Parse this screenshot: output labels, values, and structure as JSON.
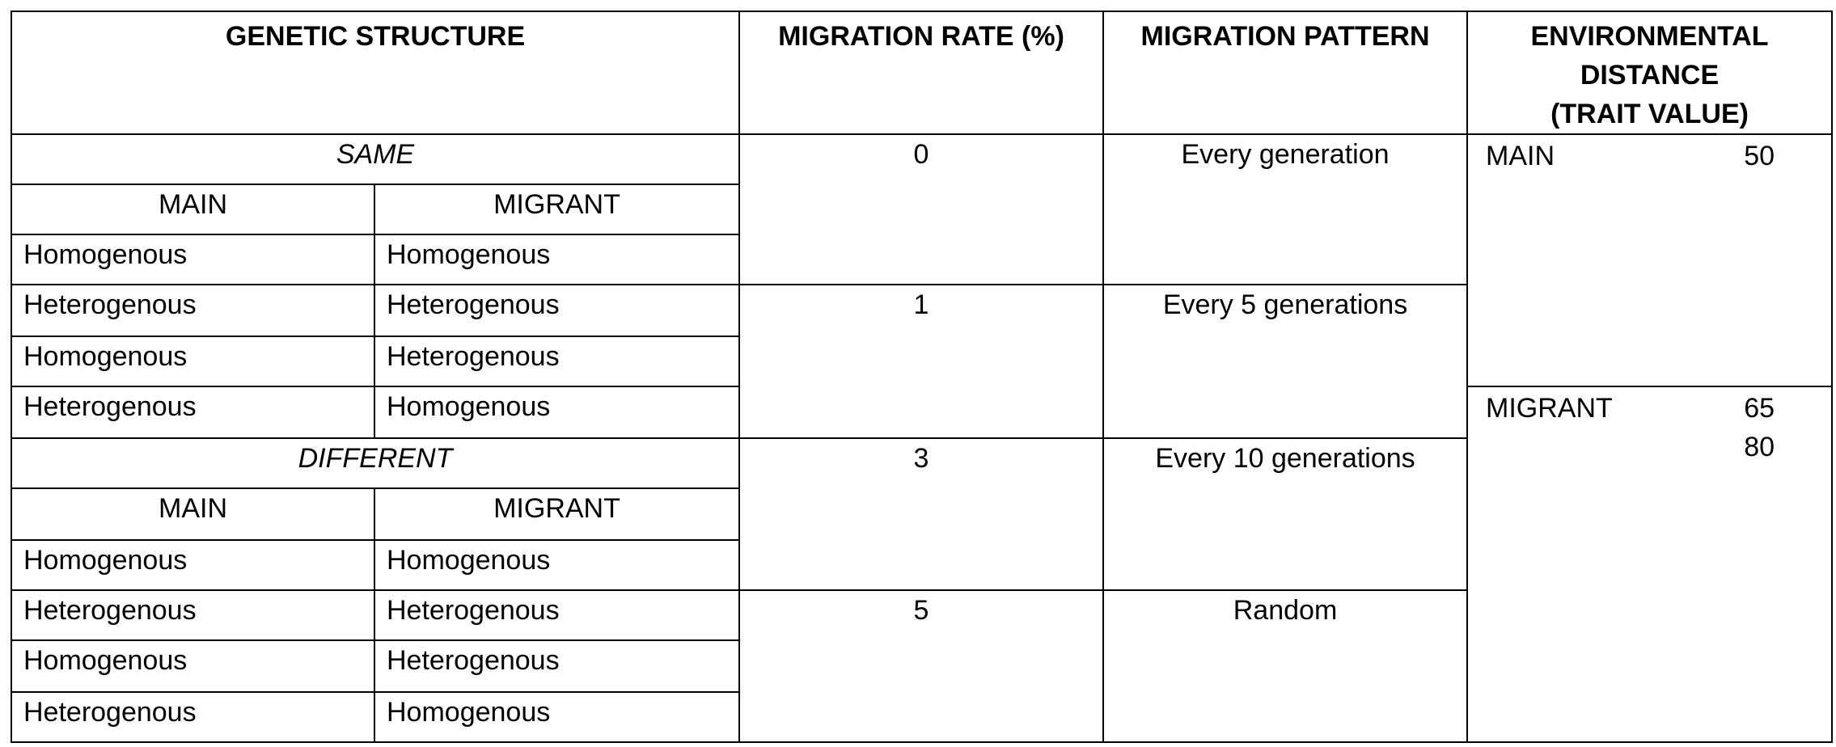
{
  "headers": {
    "genetic_structure": "GENETIC STRUCTURE",
    "migration_rate": "MIGRATION RATE (%)",
    "migration_pattern": "MIGRATION PATTERN",
    "environmental_distance_line1": "ENVIRONMENTAL",
    "environmental_distance_line2": "DISTANCE",
    "environmental_distance_line3": "(TRAIT VALUE)"
  },
  "groups": [
    {
      "label": "SAME",
      "col_main": "MAIN",
      "col_migrant": "MIGRANT",
      "rows": [
        {
          "main": "Homogenous",
          "migrant": "Homogenous"
        },
        {
          "main": "Heterogenous",
          "migrant": "Heterogenous"
        },
        {
          "main": "Homogenous",
          "migrant": "Heterogenous"
        },
        {
          "main": "Heterogenous",
          "migrant": "Homogenous"
        }
      ]
    },
    {
      "label": "DIFFERENT",
      "col_main": "MAIN",
      "col_migrant": "MIGRANT",
      "rows": [
        {
          "main": "Homogenous",
          "migrant": "Homogenous"
        },
        {
          "main": "Heterogenous",
          "migrant": "Heterogenous"
        },
        {
          "main": "Homogenous",
          "migrant": "Heterogenous"
        },
        {
          "main": "Heterogenous",
          "migrant": "Homogenous"
        }
      ]
    }
  ],
  "migration_rates": [
    "0",
    "1",
    "3",
    "5"
  ],
  "migration_patterns": [
    "Every generation",
    "Every 5 generations",
    "Every 10 generations",
    "Random"
  ],
  "environment": {
    "main_label": "MAIN",
    "main_value": "50",
    "migrant_label": "MIGRANT",
    "migrant_values": [
      "65",
      "80"
    ]
  }
}
